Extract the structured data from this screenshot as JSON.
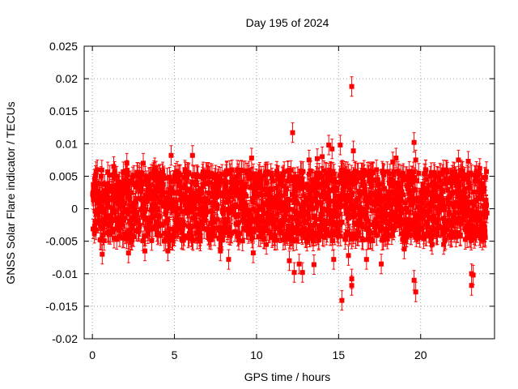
{
  "chart_data": {
    "type": "scatter",
    "title": "Day 195 of 2024",
    "xlabel": "GPS time / hours",
    "ylabel": "GNSS Solar Flare indicator / TECUs",
    "xlim": [
      -0.5,
      24.5
    ],
    "ylim": [
      -0.02,
      0.025
    ],
    "x_ticks": [
      0,
      5,
      10,
      15,
      20
    ],
    "x_tick_labels": [
      "0",
      "5",
      "10",
      "15",
      "20"
    ],
    "y_ticks": [
      -0.02,
      -0.015,
      -0.01,
      -0.005,
      0,
      0.005,
      0.01,
      0.015,
      0.02,
      0.025
    ],
    "y_tick_labels": [
      "-0.02",
      "-0.015",
      "-0.01",
      "-0.005",
      "0",
      "0.005",
      "0.01",
      "0.015",
      "0.02",
      "0.025"
    ],
    "grid": true,
    "color": "#ff0000",
    "error_bar": 0.0015,
    "band": {
      "x_range": [
        0,
        24
      ],
      "x_step": 0.05,
      "y_range": [
        -0.005,
        0.006
      ]
    },
    "points": [
      {
        "x": 0.3,
        "y": 0.006
      },
      {
        "x": 0.6,
        "y": -0.007
      },
      {
        "x": 1.3,
        "y": 0.0065
      },
      {
        "x": 2.1,
        "y": 0.007
      },
      {
        "x": 2.2,
        "y": -0.0068
      },
      {
        "x": 3.1,
        "y": 0.007
      },
      {
        "x": 3.2,
        "y": -0.0065
      },
      {
        "x": 3.8,
        "y": 0.0063
      },
      {
        "x": 4.6,
        "y": -0.0065
      },
      {
        "x": 4.8,
        "y": 0.0082
      },
      {
        "x": 6.1,
        "y": 0.0082
      },
      {
        "x": 7.8,
        "y": -0.0065
      },
      {
        "x": 8.3,
        "y": -0.0078
      },
      {
        "x": 9.2,
        "y": 0.0058
      },
      {
        "x": 9.7,
        "y": 0.0078
      },
      {
        "x": 9.8,
        "y": -0.0068
      },
      {
        "x": 10.3,
        "y": 0.005
      },
      {
        "x": 10.6,
        "y": -0.0055
      },
      {
        "x": 11.3,
        "y": 0.0048
      },
      {
        "x": 12.0,
        "y": -0.008
      },
      {
        "x": 12.2,
        "y": 0.0117
      },
      {
        "x": 12.3,
        "y": -0.0098
      },
      {
        "x": 12.6,
        "y": -0.0085
      },
      {
        "x": 12.8,
        "y": -0.0098
      },
      {
        "x": 13.2,
        "y": 0.0075
      },
      {
        "x": 13.5,
        "y": -0.0086
      },
      {
        "x": 13.7,
        "y": 0.0077
      },
      {
        "x": 14.0,
        "y": 0.008
      },
      {
        "x": 14.4,
        "y": 0.0098
      },
      {
        "x": 14.6,
        "y": 0.0092
      },
      {
        "x": 14.7,
        "y": -0.0078
      },
      {
        "x": 15.1,
        "y": 0.0098
      },
      {
        "x": 15.2,
        "y": -0.0141
      },
      {
        "x": 15.6,
        "y": -0.0072
      },
      {
        "x": 15.8,
        "y": 0.0188
      },
      {
        "x": 15.8,
        "y": -0.0118
      },
      {
        "x": 15.9,
        "y": 0.0089
      },
      {
        "x": 15.8,
        "y": -0.0108
      },
      {
        "x": 16.4,
        "y": 0.0055
      },
      {
        "x": 16.7,
        "y": -0.0078
      },
      {
        "x": 17.6,
        "y": -0.0085
      },
      {
        "x": 18.3,
        "y": 0.0072
      },
      {
        "x": 18.5,
        "y": 0.0078
      },
      {
        "x": 19.0,
        "y": -0.0062
      },
      {
        "x": 19.6,
        "y": 0.0102
      },
      {
        "x": 19.6,
        "y": -0.011
      },
      {
        "x": 19.7,
        "y": -0.0128
      },
      {
        "x": 19.7,
        "y": 0.0075
      },
      {
        "x": 20.3,
        "y": 0.006
      },
      {
        "x": 20.7,
        "y": -0.0055
      },
      {
        "x": 21.4,
        "y": -0.0055
      },
      {
        "x": 22.3,
        "y": 0.0075
      },
      {
        "x": 22.9,
        "y": 0.0073
      },
      {
        "x": 23.1,
        "y": -0.01
      },
      {
        "x": 23.1,
        "y": -0.0118
      },
      {
        "x": 23.2,
        "y": -0.0102
      },
      {
        "x": 23.6,
        "y": 0.0062
      },
      {
        "x": 23.9,
        "y": 0.0048
      }
    ]
  }
}
